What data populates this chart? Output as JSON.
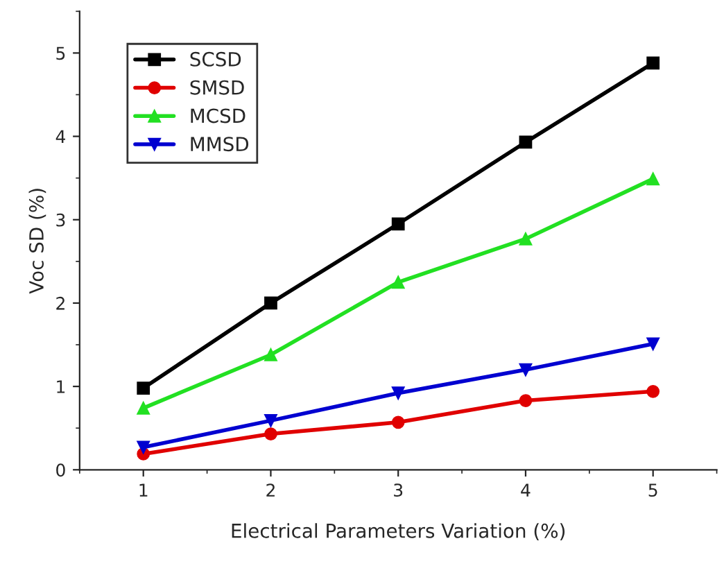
{
  "chart_data": {
    "type": "line",
    "xlabel": "Electrical Parameters Variation (%)",
    "ylabel": "Voc SD (%)",
    "x": [
      1,
      2,
      3,
      4,
      5
    ],
    "series": [
      {
        "name": "SCSD",
        "color": "#000000",
        "marker": "square",
        "values": [
          0.98,
          2.0,
          2.95,
          3.93,
          4.88
        ]
      },
      {
        "name": "SMSD",
        "color": "#e00000",
        "marker": "circle",
        "values": [
          0.19,
          0.43,
          0.57,
          0.83,
          0.94
        ]
      },
      {
        "name": "MCSD",
        "color": "#22e022",
        "marker": "triangle",
        "values": [
          0.74,
          1.38,
          2.25,
          2.77,
          3.49
        ]
      },
      {
        "name": "MMSD",
        "color": "#0000d0",
        "marker": "triangle_down",
        "values": [
          0.27,
          0.59,
          0.92,
          1.2,
          1.51
        ]
      }
    ],
    "xlim": [
      0.5,
      5.5
    ],
    "xticks": [
      1,
      2,
      3,
      4,
      5
    ],
    "ylim": [
      0,
      5.5
    ],
    "yticks": [
      0,
      1,
      2,
      3,
      4,
      5
    ],
    "legend": "top left",
    "grid": false,
    "line_style": "solid"
  }
}
